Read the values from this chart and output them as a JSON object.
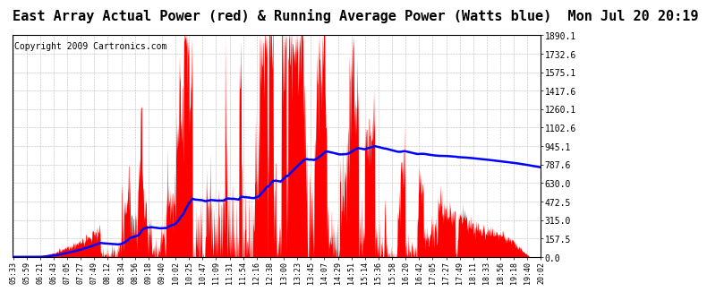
{
  "title": "East Array Actual Power (red) & Running Average Power (Watts blue)  Mon Jul 20 20:19",
  "copyright": "Copyright 2009 Cartronics.com",
  "bg_color": "#ffffff",
  "plot_bg_color": "#ffffff",
  "grid_color": "#bbbbbb",
  "yticks": [
    0.0,
    157.5,
    315.0,
    472.5,
    630.0,
    787.6,
    945.1,
    1102.6,
    1260.1,
    1417.6,
    1575.1,
    1732.6,
    1890.1
  ],
  "ylim": [
    0,
    1890.1
  ],
  "x_labels": [
    "05:33",
    "05:59",
    "06:21",
    "06:43",
    "07:05",
    "07:27",
    "07:49",
    "08:12",
    "08:34",
    "08:56",
    "09:18",
    "09:40",
    "10:02",
    "10:25",
    "10:47",
    "11:09",
    "11:31",
    "11:54",
    "12:16",
    "12:38",
    "13:00",
    "13:23",
    "13:45",
    "14:07",
    "14:29",
    "14:51",
    "15:14",
    "15:36",
    "15:58",
    "16:20",
    "16:42",
    "17:05",
    "17:27",
    "17:49",
    "18:11",
    "18:33",
    "18:56",
    "19:18",
    "19:40",
    "20:02"
  ],
  "red_fill_color": "#ff0000",
  "blue_line_color": "#0000ff",
  "title_fontsize": 11,
  "copyright_fontsize": 7,
  "tick_fontsize": 6,
  "y_tick_fontsize": 7
}
